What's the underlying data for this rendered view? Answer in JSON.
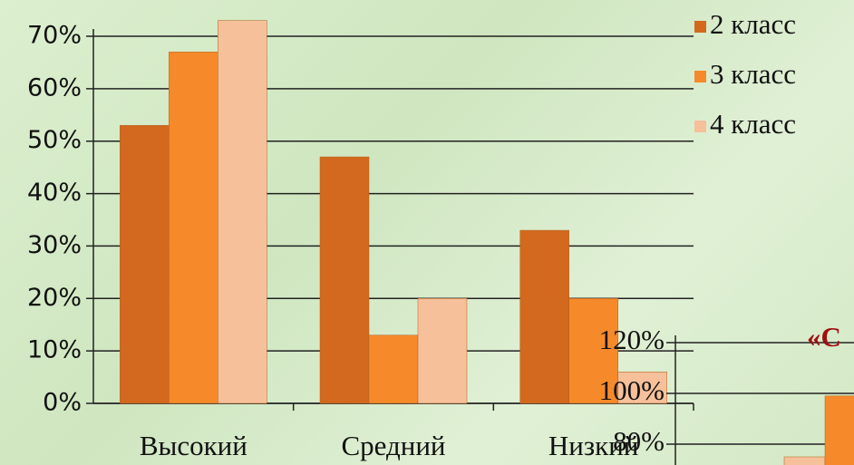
{
  "chart_data": [
    {
      "type": "bar",
      "categories": [
        "Высокий",
        "Средний",
        "Низкий"
      ],
      "series": [
        {
          "name": "2 класс",
          "color": "#d2691e",
          "values": [
            53,
            47,
            33
          ]
        },
        {
          "name": "3 класс",
          "color": "#f68a2a",
          "values": [
            67,
            13,
            20
          ]
        },
        {
          "name": "4 класс",
          "color": "#f6c09a",
          "values": [
            73,
            20,
            6
          ]
        }
      ],
      "ylim": [
        0,
        70
      ],
      "yticks": [
        {
          "value": 0,
          "label": "0%"
        },
        {
          "value": 10,
          "label": "10%"
        },
        {
          "value": 20,
          "label": "20%"
        },
        {
          "value": 30,
          "label": "30%"
        },
        {
          "value": 40,
          "label": "40%"
        },
        {
          "value": 50,
          "label": "50%"
        },
        {
          "value": 60,
          "label": "60%"
        },
        {
          "value": 70,
          "label": "70%"
        }
      ],
      "grid": true,
      "legend": "right"
    },
    {
      "type": "bar",
      "title": "«С",
      "series": [
        {
          "color": "#f6c09a",
          "values": [
            75
          ]
        },
        {
          "color": "#f68a2a",
          "values": [
            99
          ]
        }
      ],
      "ylim": [
        70,
        120
      ],
      "yticks": [
        {
          "value": 80,
          "label": "80%"
        },
        {
          "value": 100,
          "label": "100%"
        },
        {
          "value": 120,
          "label": "120%"
        }
      ],
      "grid": true
    }
  ]
}
